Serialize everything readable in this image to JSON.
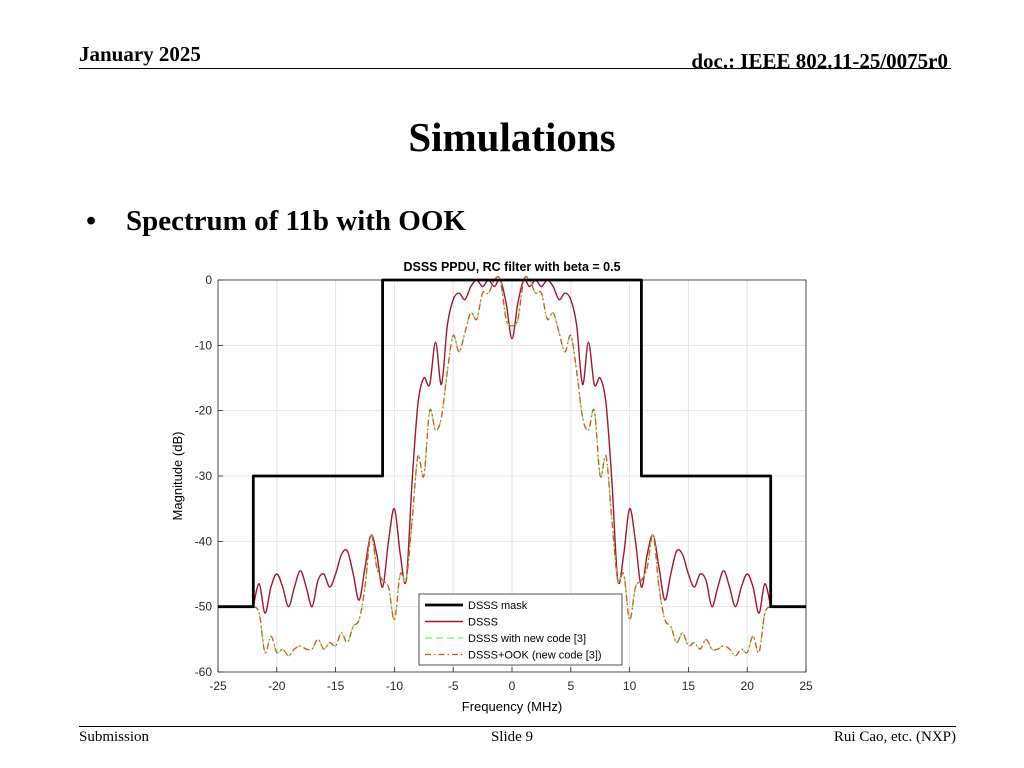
{
  "header": {
    "date": "January 2025",
    "doc": "doc.: IEEE 802.11-25/0075r0"
  },
  "slide_title": "Simulations",
  "bullet": "Spectrum of 11b with OOK",
  "footer": {
    "left": "Submission",
    "center": "Slide 9",
    "right": "Rui Cao, etc. (NXP)"
  },
  "chart_data": {
    "type": "line",
    "title": "DSSS PPDU, RC filter with beta = 0.5",
    "xlabel": "Frequency (MHz)",
    "ylabel": "Magnitude (dB)",
    "xlim": [
      -25,
      25
    ],
    "ylim": [
      -60,
      0
    ],
    "xticks": [
      -25,
      -20,
      -15,
      -10,
      -5,
      0,
      5,
      10,
      15,
      20,
      25
    ],
    "yticks": [
      0,
      -10,
      -20,
      -30,
      -40,
      -50,
      -60
    ],
    "grid": true,
    "legend_position": "bottom-center",
    "series": [
      {
        "name": "DSSS mask",
        "color": "#000000",
        "style": "solid-thick",
        "x": [
          -25,
          -22,
          -22,
          -11,
          -11,
          11,
          11,
          22,
          22,
          25
        ],
        "y": [
          -50,
          -50,
          -30,
          -30,
          0,
          0,
          -30,
          -30,
          -50,
          -50
        ]
      },
      {
        "name": "DSSS",
        "color": "#a2142f",
        "style": "solid",
        "x": [
          -22,
          -21.5,
          -21,
          -20.5,
          -20,
          -19.5,
          -19,
          -18.5,
          -18,
          -17.5,
          -17,
          -16.5,
          -16,
          -15.5,
          -15,
          -14.5,
          -14,
          -13.5,
          -13,
          -12.5,
          -12,
          -11.5,
          -11,
          -10.5,
          -10,
          -9.5,
          -9,
          -8.5,
          -8,
          -7.5,
          -7,
          -6.5,
          -6,
          -5.5,
          -5,
          -4.5,
          -4,
          -3.5,
          -3,
          -2.5,
          -2,
          -1.5,
          -1,
          -0.5,
          0,
          0.5,
          1,
          1.5,
          2,
          2.5,
          3,
          3.5,
          4,
          4.5,
          5,
          5.5,
          6,
          6.5,
          7,
          7.5,
          8,
          8.5,
          9,
          9.5,
          10,
          10.5,
          11,
          11.5,
          12,
          12.5,
          13,
          13.5,
          14,
          14.5,
          15,
          15.5,
          16,
          16.5,
          17,
          17.5,
          18,
          18.5,
          19,
          19.5,
          20,
          20.5,
          21,
          21.5,
          22
        ],
        "y": [
          -50,
          -46.5,
          -51,
          -47,
          -45,
          -47,
          -50,
          -47,
          -44.5,
          -47,
          -50,
          -46,
          -45,
          -47,
          -45,
          -42,
          -41.5,
          -45,
          -49,
          -44,
          -39,
          -42,
          -47,
          -40,
          -35,
          -42,
          -46,
          -31,
          -19,
          -15,
          -16,
          -9.5,
          -16,
          -7,
          -3,
          -2,
          -3,
          -1,
          0,
          -1,
          0,
          -1,
          0,
          -3.5,
          -9,
          -3.5,
          0,
          -1,
          0,
          -1,
          0,
          -1,
          -3,
          -2,
          -3,
          -7,
          -16,
          -9.5,
          -16,
          -15,
          -19,
          -31,
          -46,
          -42,
          -35,
          -40,
          -47,
          -42,
          -39,
          -44,
          -49,
          -45,
          -41.5,
          -42,
          -45,
          -47,
          -45,
          -46,
          -50,
          -47,
          -44.5,
          -47,
          -50,
          -47,
          -45,
          -47,
          -51,
          -46.5,
          -50
        ]
      },
      {
        "name": "DSSS with new code [3]",
        "color": "#77ee77",
        "style": "dashed",
        "x": [
          -22,
          -21.5,
          -21,
          -20.5,
          -20,
          -19.5,
          -19,
          -18.5,
          -18,
          -17.5,
          -17,
          -16.5,
          -16,
          -15.5,
          -15,
          -14.5,
          -14,
          -13.5,
          -13,
          -12.5,
          -12,
          -11.5,
          -11,
          -10.5,
          -10,
          -9.5,
          -9,
          -8.5,
          -8,
          -7.5,
          -7,
          -6.5,
          -6,
          -5.5,
          -5,
          -4.5,
          -4,
          -3.5,
          -3,
          -2.5,
          -2,
          -1.5,
          -1,
          -0.5,
          0,
          0.5,
          1,
          1.5,
          2,
          2.5,
          3,
          3.5,
          4,
          4.5,
          5,
          5.5,
          6,
          6.5,
          7,
          7.5,
          8,
          8.5,
          9,
          9.5,
          10,
          10.5,
          11,
          11.5,
          12,
          12.5,
          13,
          13.5,
          14,
          14.5,
          15,
          15.5,
          16,
          16.5,
          17,
          17.5,
          18,
          18.5,
          19,
          19.5,
          20,
          20.5,
          21,
          21.5,
          22
        ],
        "y": [
          -50,
          -51,
          -57,
          -54.5,
          -57,
          -56.5,
          -57.5,
          -56.5,
          -56,
          -56.5,
          -56.5,
          -55,
          -56.5,
          -55.5,
          -56,
          -54,
          -55.5,
          -53,
          -52,
          -47,
          -39,
          -44,
          -46,
          -47,
          -52,
          -45,
          -46,
          -37,
          -27,
          -30,
          -20,
          -23,
          -21,
          -14,
          -8.5,
          -11,
          -8,
          -5,
          -6,
          -2,
          -2,
          0,
          0,
          -6,
          -7,
          -6,
          0,
          0,
          -2,
          -2,
          -6,
          -5,
          -8,
          -11,
          -8.5,
          -14,
          -21,
          -23,
          -20,
          -30,
          -27,
          -37,
          -46,
          -45,
          -52,
          -47,
          -46,
          -44,
          -39,
          -47,
          -52,
          -53,
          -55.5,
          -54,
          -56,
          -55.5,
          -56.5,
          -55,
          -56.5,
          -56.5,
          -56,
          -56.5,
          -57.5,
          -56.5,
          -57,
          -54.5,
          -57,
          -51,
          -50
        ]
      },
      {
        "name": "DSSS+OOK (new code [3])",
        "color": "#d95319",
        "style": "dashdot",
        "x": [
          -22,
          -21.5,
          -21,
          -20.5,
          -20,
          -19.5,
          -19,
          -18.5,
          -18,
          -17.5,
          -17,
          -16.5,
          -16,
          -15.5,
          -15,
          -14.5,
          -14,
          -13.5,
          -13,
          -12.5,
          -12,
          -11.5,
          -11,
          -10.5,
          -10,
          -9.5,
          -9,
          -8.5,
          -8,
          -7.5,
          -7,
          -6.5,
          -6,
          -5.5,
          -5,
          -4.5,
          -4,
          -3.5,
          -3,
          -2.5,
          -2,
          -1.5,
          -1,
          -0.5,
          0,
          0.5,
          1,
          1.5,
          2,
          2.5,
          3,
          3.5,
          4,
          4.5,
          5,
          5.5,
          6,
          6.5,
          7,
          7.5,
          8,
          8.5,
          9,
          9.5,
          10,
          10.5,
          11,
          11.5,
          12,
          12.5,
          13,
          13.5,
          14,
          14.5,
          15,
          15.5,
          16,
          16.5,
          17,
          17.5,
          18,
          18.5,
          19,
          19.5,
          20,
          20.5,
          21,
          21.5,
          22
        ],
        "y": [
          -50,
          -51,
          -57,
          -54.5,
          -57,
          -56.5,
          -57.5,
          -56.5,
          -56,
          -56.5,
          -56.5,
          -55,
          -56.5,
          -55.5,
          -56,
          -54,
          -55.5,
          -53,
          -52,
          -47,
          -39,
          -44,
          -46,
          -47,
          -52,
          -45,
          -46,
          -37,
          -27,
          -30,
          -20,
          -23,
          -21,
          -14,
          -8.5,
          -11,
          -8,
          -5,
          -6,
          -2,
          -2,
          0,
          0,
          -6,
          -7,
          -6,
          0,
          0,
          -2,
          -2,
          -6,
          -5,
          -8,
          -11,
          -8.5,
          -14,
          -21,
          -23,
          -20,
          -30,
          -27,
          -37,
          -46,
          -45,
          -52,
          -47,
          -46,
          -44,
          -39,
          -47,
          -52,
          -53,
          -55.5,
          -54,
          -56,
          -55.5,
          -56.5,
          -55,
          -56.5,
          -56.5,
          -56,
          -56.5,
          -57.5,
          -56.5,
          -57,
          -54.5,
          -57,
          -51,
          -50
        ]
      }
    ]
  }
}
